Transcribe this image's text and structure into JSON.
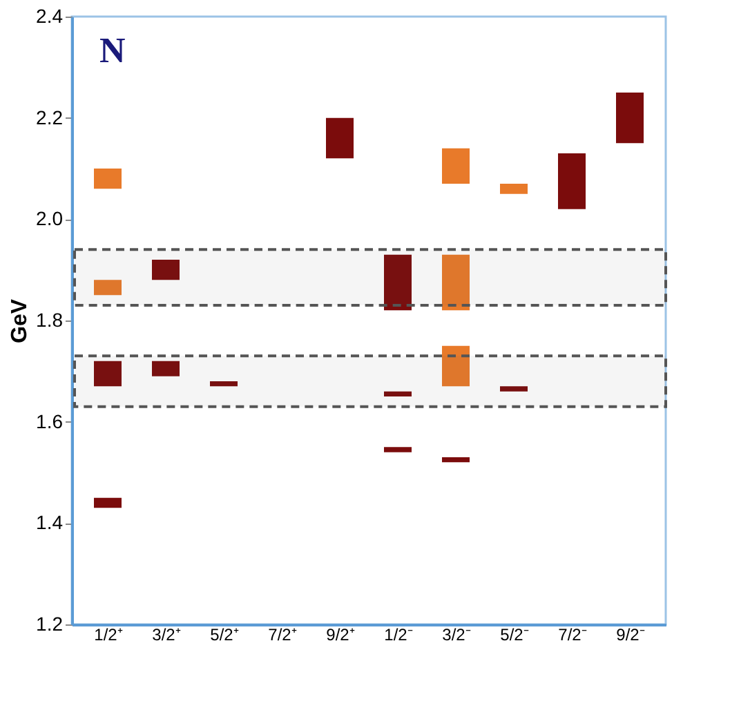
{
  "chart_data": {
    "type": "bar",
    "ylabel": "GeV",
    "categories": [
      "1/2⁺",
      "3/2⁺",
      "5/2⁺",
      "7/2⁺",
      "9/2⁺",
      "1/2⁻",
      "3/2⁻",
      "5/2⁻",
      "7/2⁻",
      "9/2⁻"
    ],
    "ylim": [
      1.2,
      2.4
    ],
    "yticks": [
      1.2,
      1.4,
      1.6,
      1.8,
      {
        "value": 2.0,
        "label": "2.0"
      },
      2.2,
      2.4
    ],
    "grid": false,
    "series": [
      {
        "color": "#7b0c0c",
        "base": [
          1.43,
          1.69,
          1.67,
          null,
          2.12,
          1.54,
          1.52,
          1.66,
          2.02,
          2.15
        ],
        "values": [
          0.02,
          0.03,
          0.01,
          null,
          0.08,
          0.01,
          0.01,
          0.01,
          0.11,
          0.1
        ]
      },
      {
        "color": "#7b0c0c",
        "base": [
          1.67,
          1.88,
          null,
          null,
          null,
          1.65,
          null,
          null,
          null,
          null
        ],
        "values": [
          0.05,
          0.04,
          null,
          null,
          null,
          0.01,
          null,
          null,
          null,
          null
        ]
      },
      {
        "color": "#7b0c0c",
        "base": [
          null,
          null,
          null,
          null,
          null,
          1.82,
          null,
          null,
          null,
          null
        ],
        "values": [
          null,
          null,
          null,
          null,
          null,
          0.11,
          null,
          null,
          null,
          null
        ]
      },
      {
        "color": "#e87a2a",
        "base": [
          1.85,
          null,
          null,
          null,
          null,
          null,
          1.67,
          2.05,
          null,
          null
        ],
        "values": [
          0.03,
          null,
          null,
          null,
          null,
          null,
          0.08,
          0.02,
          null,
          null
        ]
      },
      {
        "color": "#e87a2a",
        "base": [
          2.06,
          null,
          null,
          null,
          null,
          null,
          1.82,
          null,
          null,
          null
        ],
        "values": [
          0.04,
          null,
          null,
          null,
          null,
          null,
          0.11,
          null,
          null,
          null
        ]
      },
      {
        "color": "#e87a2a",
        "base": [
          null,
          null,
          null,
          null,
          null,
          null,
          2.07,
          null,
          null,
          null
        ],
        "values": [
          null,
          null,
          null,
          null,
          null,
          null,
          0.07,
          null,
          null,
          null
        ]
      }
    ],
    "bands": [
      {
        "axis": "y",
        "from": 1.83,
        "to": 1.94,
        "color": "#555555"
      },
      {
        "axis": "y",
        "from": 1.63,
        "to": 1.73,
        "color": "#555555"
      }
    ],
    "annotations": [
      "N"
    ]
  }
}
